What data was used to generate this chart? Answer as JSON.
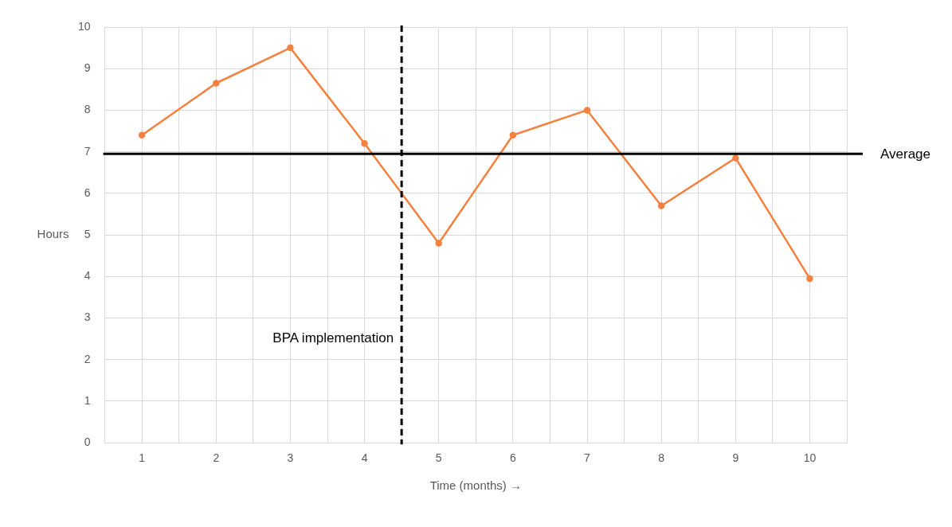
{
  "chart_data": {
    "type": "line",
    "xlabel": "Time (months) →",
    "ylabel": "Hours",
    "x": [
      1,
      2,
      3,
      4,
      5,
      6,
      7,
      8,
      9,
      10
    ],
    "series": [
      {
        "color": "#f4813f",
        "values": [
          7.4,
          8.65,
          9.5,
          7.2,
          4.8,
          7.4,
          8.0,
          5.7,
          6.85,
          3.95
        ]
      }
    ],
    "xlim": [
      0.5,
      10.5
    ],
    "xticks": [
      {
        "value": 0.5,
        "label": null
      },
      1,
      {
        "value": 1.5,
        "label": null
      },
      2,
      {
        "value": 2.5,
        "label": null
      },
      3,
      {
        "value": 3.5,
        "label": null
      },
      4,
      {
        "value": 4.5,
        "label": null
      },
      5,
      {
        "value": 5.5,
        "label": null
      },
      6,
      {
        "value": 6.5,
        "label": null
      },
      7,
      {
        "value": 7.5,
        "label": null
      },
      8,
      {
        "value": 8.5,
        "label": null
      },
      9,
      {
        "value": 9.5,
        "label": null
      },
      10,
      {
        "value": 10.5,
        "label": null
      }
    ],
    "ylim": [
      0,
      10
    ],
    "yticks": [
      0,
      1,
      2,
      3,
      4,
      5,
      6,
      7,
      8,
      9,
      10
    ],
    "grid": true,
    "marker": "circle",
    "line_style": "solid",
    "legend": false,
    "ref_lines": [
      {
        "axis": "y",
        "value": 6.95,
        "label": "Average",
        "color": "#000000",
        "line_style": "solid"
      },
      {
        "axis": "x",
        "value": 4.5,
        "label": "BPA implementation",
        "color": "#000000",
        "line_style": "dashed"
      }
    ]
  }
}
